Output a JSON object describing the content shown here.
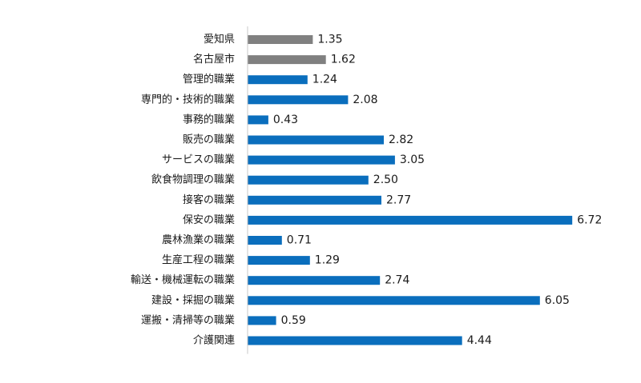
{
  "chart_data": {
    "type": "bar",
    "orientation": "horizontal",
    "categories": [
      "愛知県",
      "名古屋市",
      "管理的職業",
      "専門的・技術的職業",
      "事務的職業",
      "販売の職業",
      "サービスの職業",
      "飲食物調理の職業",
      "接客の職業",
      "保安の職業",
      "農林漁業の職業",
      "生産工程の職業",
      "輸送・機械運転の職業",
      "建設・採掘の職業",
      "運搬・清掃等の職業",
      "介護関連"
    ],
    "values": [
      1.35,
      1.62,
      1.24,
      2.08,
      0.43,
      2.82,
      3.05,
      2.5,
      2.77,
      6.72,
      0.71,
      1.29,
      2.74,
      6.05,
      0.59,
      4.44
    ],
    "value_labels": [
      "1.35",
      "1.62",
      "1.24",
      "2.08",
      "0.43",
      "2.82",
      "3.05",
      "2.50",
      "2.77",
      "6.72",
      "0.71",
      "1.29",
      "2.74",
      "6.05",
      "0.59",
      "4.44"
    ],
    "bar_colors": [
      "#808080",
      "#808080",
      "#0a6ebd",
      "#0a6ebd",
      "#0a6ebd",
      "#0a6ebd",
      "#0a6ebd",
      "#0a6ebd",
      "#0a6ebd",
      "#0a6ebd",
      "#0a6ebd",
      "#0a6ebd",
      "#0a6ebd",
      "#0a6ebd",
      "#0a6ebd",
      "#0a6ebd"
    ],
    "title": "",
    "xlabel": "",
    "ylabel": "",
    "xlim": [
      0,
      7
    ],
    "grid": false,
    "legend": "none"
  }
}
